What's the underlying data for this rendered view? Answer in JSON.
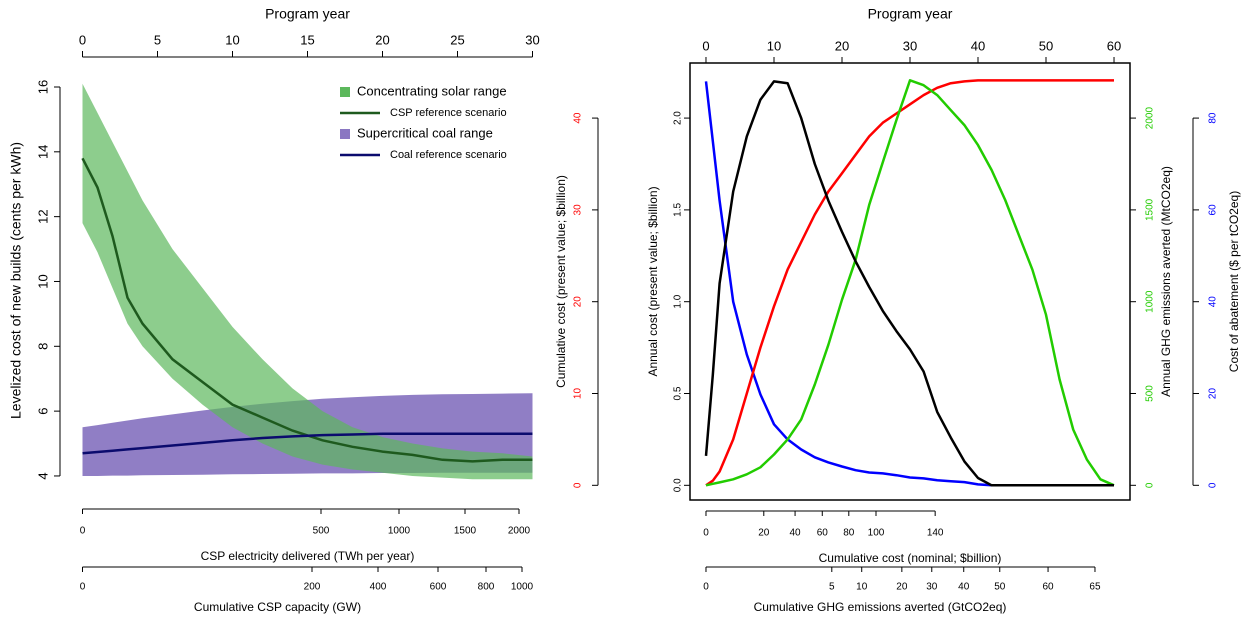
{
  "chart_data": [
    {
      "type": "band-line",
      "top_axis_label": "Program year",
      "x": [
        0,
        1,
        2,
        3,
        4,
        6,
        8,
        10,
        12,
        14,
        16,
        18,
        20,
        22,
        24,
        26,
        28,
        30
      ],
      "xlim": [
        -1.5,
        31.5
      ],
      "xticks": [
        0,
        5,
        10,
        15,
        20,
        25,
        30
      ],
      "ylabel": "Levelized cost of new builds (cents per kWh)",
      "ylim": [
        3.32,
        16.74
      ],
      "yticks": [
        4,
        6,
        8,
        10,
        12,
        14,
        16
      ],
      "legend": "upper right",
      "bands": [
        {
          "name": "Concentrating solar range",
          "color": "#5cb85c",
          "low": [
            11.8,
            10.9,
            9.8,
            8.7,
            8.0,
            7.0,
            6.2,
            5.5,
            5.0,
            4.6,
            4.35,
            4.2,
            4.1,
            4.0,
            3.95,
            3.9,
            3.9,
            3.9
          ],
          "high": [
            16.1,
            15.2,
            14.3,
            13.4,
            12.5,
            11.0,
            9.8,
            8.6,
            7.6,
            6.7,
            6.0,
            5.5,
            5.2,
            5.0,
            4.85,
            4.75,
            4.7,
            4.6
          ]
        },
        {
          "name": "Supercritical coal range",
          "color": "#8a77c2",
          "low": [
            4.0,
            4.0,
            4.01,
            4.01,
            4.02,
            4.03,
            4.04,
            4.05,
            4.06,
            4.07,
            4.08,
            4.08,
            4.09,
            4.09,
            4.1,
            4.1,
            4.1,
            4.1
          ],
          "high": [
            5.5,
            5.57,
            5.64,
            5.71,
            5.78,
            5.9,
            6.02,
            6.13,
            6.23,
            6.31,
            6.38,
            6.43,
            6.47,
            6.5,
            6.52,
            6.53,
            6.54,
            6.55
          ]
        }
      ],
      "series": [
        {
          "name": "CSP reference scenario",
          "color": "#1e5a1e",
          "values": [
            13.8,
            12.9,
            11.4,
            9.5,
            8.7,
            7.6,
            6.9,
            6.2,
            5.8,
            5.4,
            5.1,
            4.9,
            4.75,
            4.65,
            4.5,
            4.45,
            4.5,
            4.5
          ]
        },
        {
          "name": "Coal reference scenario",
          "color": "#0b0b6e",
          "values": [
            4.7,
            4.74,
            4.78,
            4.82,
            4.86,
            4.94,
            5.02,
            5.1,
            5.17,
            5.22,
            5.26,
            5.28,
            5.3,
            5.3,
            5.3,
            5.3,
            5.3,
            5.3
          ]
        }
      ],
      "bottom_axes": [
        {
          "label": "CSP electricity delivered (TWh per year)",
          "ticks": [
            0,
            500,
            1000,
            1500,
            2000
          ],
          "tick_years": [
            0,
            15.9,
            21.1,
            25.5,
            29.1
          ]
        },
        {
          "label": "Cumulative CSP capacity (GW)",
          "ticks": [
            0,
            200,
            400,
            600,
            800,
            1000
          ],
          "tick_years": [
            0,
            15.3,
            19.7,
            23.7,
            26.9,
            29.3
          ]
        }
      ]
    },
    {
      "type": "multi-axis-line",
      "top_axis_label": "Program year",
      "x": [
        0,
        1,
        2,
        4,
        6,
        8,
        10,
        12,
        14,
        16,
        18,
        20,
        22,
        24,
        26,
        28,
        30,
        32,
        34,
        36,
        38,
        40,
        42,
        44,
        46,
        48,
        50,
        52,
        54,
        56,
        58,
        60
      ],
      "xlim": [
        -2.35,
        62.35
      ],
      "xticks": [
        0,
        10,
        20,
        30,
        40,
        50,
        60
      ],
      "axes": [
        {
          "id": "y",
          "label": "Cumulative cost  (present value; $billion)",
          "color": "#ff0000",
          "lim": [
            -1.6,
            46
          ],
          "ticks": [
            0,
            10,
            20,
            30,
            40
          ]
        },
        {
          "id": "y2",
          "label": "Annual cost  (present value; $billion)",
          "color": "#000000",
          "lim": [
            -0.08,
            2.3
          ],
          "ticks": [
            {
              "value": 0,
              "label": "0.0"
            },
            {
              "value": 0.5,
              "label": "0.5"
            },
            {
              "value": 1,
              "label": "1.0"
            },
            {
              "value": 1.5,
              "label": "1.5"
            },
            {
              "value": 2,
              "label": "2.0"
            }
          ]
        },
        {
          "id": "y3",
          "label": "Annual GHG emissions averted  (MtCO2eq)",
          "color": "#22cc00",
          "lim": [
            -80,
            2300
          ],
          "ticks": [
            0,
            500,
            1000,
            1500,
            2000
          ]
        },
        {
          "id": "y4",
          "label": "Cost of abatement ($ per tCO2eq)",
          "color": "#0000ff",
          "lim": [
            -3.2,
            92
          ],
          "ticks": [
            0,
            20,
            40,
            60,
            80
          ]
        }
      ],
      "series": [
        {
          "axis": "y4",
          "color": "#0000ff",
          "values": [
            88,
            75,
            62,
            40,
            28.5,
            19.8,
            13.3,
            10,
            7.8,
            6.1,
            5,
            4.1,
            3.3,
            2.8,
            2.6,
            2.2,
            1.7,
            1.5,
            1.1,
            0.9,
            0.7,
            0.2,
            0,
            0,
            0,
            0,
            0,
            0,
            0,
            0,
            0,
            0
          ]
        },
        {
          "axis": "y",
          "color": "#ff0000",
          "values": [
            0,
            0.5,
            1.5,
            5,
            10,
            15,
            19.5,
            23.5,
            26.5,
            29.5,
            32,
            34,
            36,
            38,
            39.5,
            40.5,
            41.5,
            42.5,
            43.3,
            43.8,
            44,
            44.1,
            44.1,
            44.1,
            44.1,
            44.1,
            44.1,
            44.1,
            44.1,
            44.1,
            44.1,
            44.1
          ]
        },
        {
          "axis": "y3",
          "color": "#22cc00",
          "values": [
            0,
            8,
            16,
            33,
            60,
            98,
            168,
            250,
            359,
            549,
            766,
            1011,
            1228,
            1527,
            1760,
            1989,
            2206,
            2179,
            2125,
            2043,
            1962,
            1853,
            1717,
            1554,
            1364,
            1174,
            929,
            576,
            304,
            141,
            33,
            0
          ]
        },
        {
          "axis": "y2",
          "color": "#000000",
          "values": [
            0.16,
            0.6,
            1.1,
            1.6,
            1.9,
            2.1,
            2.2,
            2.19,
            2.0,
            1.75,
            1.55,
            1.38,
            1.22,
            1.08,
            0.95,
            0.84,
            0.74,
            0.62,
            0.4,
            0.26,
            0.13,
            0.04,
            0,
            0,
            0,
            0,
            0,
            0,
            0,
            0,
            0,
            0
          ]
        }
      ],
      "bottom_axes": [
        {
          "label": "Cumulative cost (nominal; $billion)",
          "ticks": [
            0,
            20,
            40,
            60,
            80,
            100,
            140
          ],
          "tick_years": [
            0,
            8.5,
            13.1,
            17.1,
            21.0,
            25.0,
            33.7
          ]
        },
        {
          "label": "Cumulative GHG emissions averted (GtCO2eq)",
          "ticks": [
            0,
            5,
            10,
            20,
            30,
            40,
            50,
            60,
            65
          ],
          "tick_years": [
            0,
            18.5,
            22.9,
            28.8,
            33.2,
            37.9,
            43.2,
            50.3,
            57.2
          ]
        }
      ]
    }
  ]
}
